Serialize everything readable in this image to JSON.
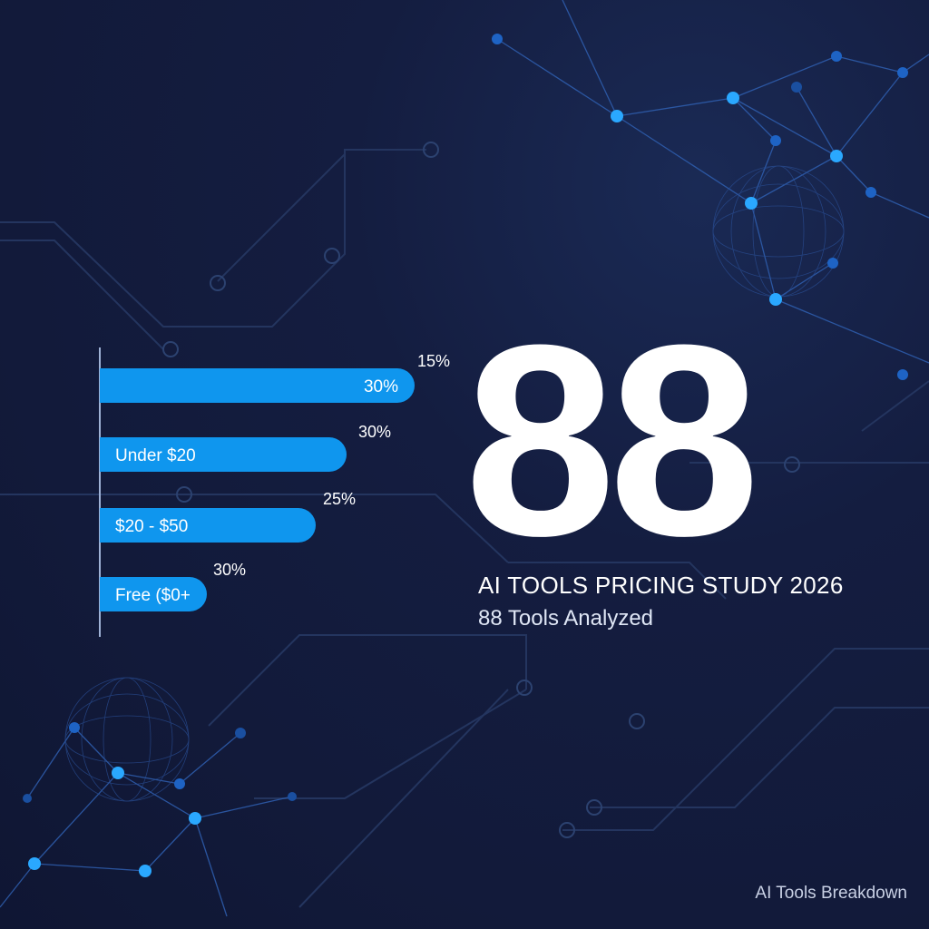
{
  "chart_data": {
    "type": "bar",
    "orientation": "horizontal",
    "bars": [
      {
        "inside_label": "30%",
        "outside_label": "15%"
      },
      {
        "inside_label": "Under $20",
        "outside_label": "30%"
      },
      {
        "inside_label": "$20 - $50",
        "outside_label": "25%"
      },
      {
        "inside_label": "Free ($0+",
        "outside_label": "30%"
      }
    ],
    "bar_color": "#0f96ee",
    "grid": false,
    "legend": "none"
  },
  "hero": {
    "number": "88",
    "title": "AI TOOLS PRICING STUDY 2026",
    "subtitle": "88 Tools Analyzed"
  },
  "footer": {
    "text": "AI Tools Breakdown"
  },
  "colors": {
    "background": "#131b3b",
    "accent": "#0f96ee",
    "node_glow": "#2aa8ff",
    "line": "#2c4a8a"
  }
}
